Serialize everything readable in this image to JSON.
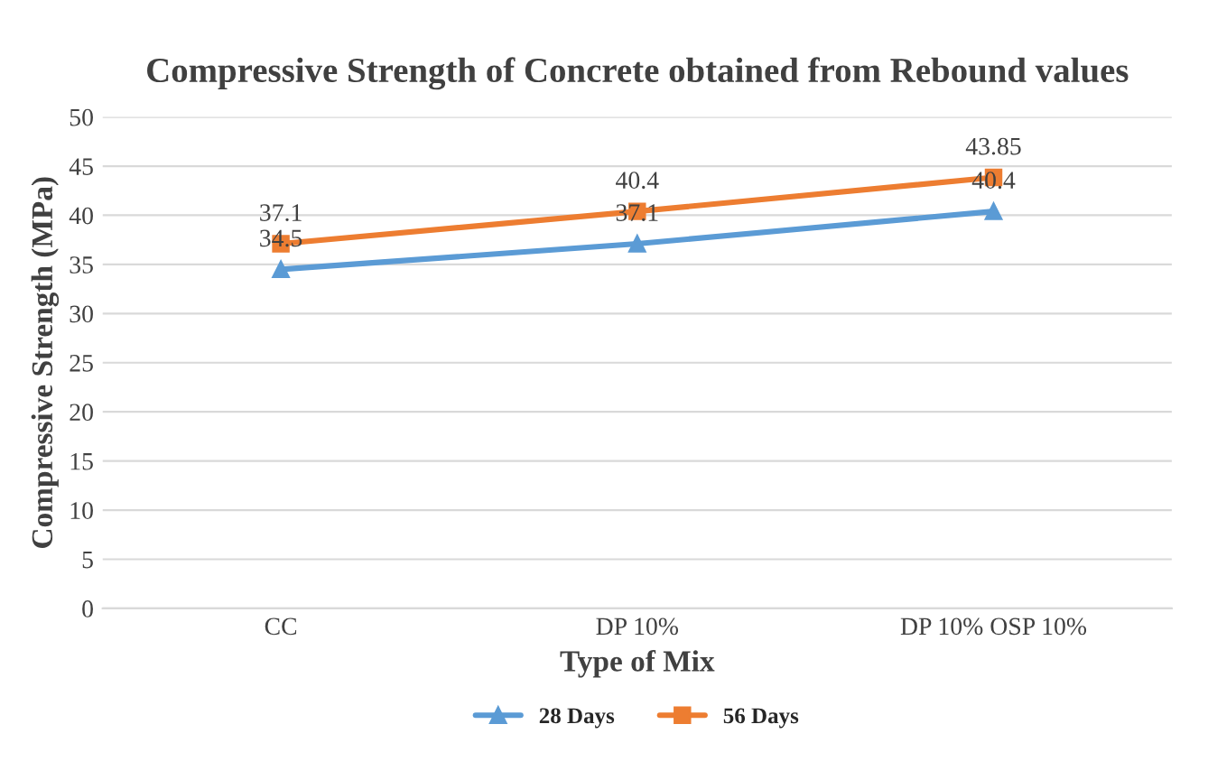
{
  "chart_data": {
    "type": "line",
    "title": "Compressive Strength of Concrete obtained from Rebound values",
    "xlabel": "Type of Mix",
    "ylabel": "Compressive Strength (MPa)",
    "categories": [
      "CC",
      "DP 10%",
      "DP 10% OSP 10%"
    ],
    "series": [
      {
        "name": "28 Days",
        "color": "#5b9bd5",
        "marker": "triangle",
        "values": [
          34.5,
          37.1,
          40.4
        ]
      },
      {
        "name": "56 Days",
        "color": "#ed7d31",
        "marker": "square",
        "values": [
          37.1,
          40.4,
          43.85
        ]
      }
    ],
    "ylim": [
      0,
      50
    ],
    "yticks": [
      0,
      5,
      10,
      15,
      20,
      25,
      30,
      35,
      40,
      45,
      50
    ],
    "grid": "y",
    "legend": "bottom",
    "data_labels": true,
    "line_style": "solid"
  }
}
